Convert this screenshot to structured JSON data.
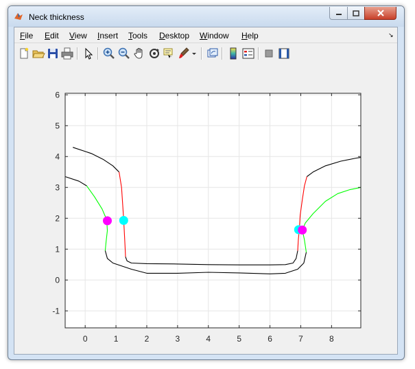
{
  "window": {
    "title": "Neck thickness",
    "app_icon": "matlab-icon"
  },
  "menu": {
    "items": [
      {
        "label": "File",
        "mnemonic": "F",
        "rest": "ile"
      },
      {
        "label": "Edit",
        "mnemonic": "E",
        "rest": "dit"
      },
      {
        "label": "View",
        "mnemonic": "V",
        "rest": "iew"
      },
      {
        "label": "Insert",
        "mnemonic": "I",
        "rest": "nsert"
      },
      {
        "label": "Tools",
        "mnemonic": "T",
        "rest": "ools"
      },
      {
        "label": "Desktop",
        "mnemonic": "D",
        "rest": "esktop"
      },
      {
        "label": "Window",
        "mnemonic": "W",
        "rest": "indow"
      },
      {
        "label": "Help",
        "mnemonic": "H",
        "rest": "elp"
      }
    ]
  },
  "toolbar": {
    "buttons": [
      "new-figure-icon",
      "open-file-icon",
      "save-icon",
      "print-icon",
      "select-pointer-icon",
      "zoom-in-icon",
      "zoom-out-icon",
      "pan-hand-icon",
      "rotate-3d-icon",
      "data-cursor-icon",
      "brush-icon",
      "brush-dropdown-icon",
      "link-plot-icon",
      "colorbar-icon",
      "legend-icon",
      "hide-plot-tools-icon",
      "show-plot-tools-icon"
    ]
  },
  "chart_data": {
    "type": "line",
    "title": "",
    "xlabel": "",
    "ylabel": "",
    "xlim": [
      -0.65,
      8.95
    ],
    "ylim": [
      -1.55,
      6.05
    ],
    "xticks": [
      0,
      1,
      2,
      3,
      4,
      5,
      6,
      7,
      8
    ],
    "yticks": [
      -1,
      0,
      1,
      2,
      3,
      4,
      5,
      6
    ],
    "grid": true,
    "series": [
      {
        "color": "#000000",
        "points": [
          [
            -0.4,
            4.3
          ],
          [
            0.2,
            4.1
          ],
          [
            0.6,
            3.9
          ],
          [
            0.9,
            3.7
          ],
          [
            1.1,
            3.5
          ]
        ]
      },
      {
        "color": "#ff0000",
        "points": [
          [
            1.1,
            3.5
          ],
          [
            1.18,
            3.0
          ],
          [
            1.22,
            2.4
          ],
          [
            1.25,
            1.95
          ],
          [
            1.28,
            1.4
          ],
          [
            1.3,
            1.0
          ],
          [
            1.31,
            0.75
          ]
        ]
      },
      {
        "color": "#000000",
        "points": [
          [
            1.31,
            0.75
          ],
          [
            1.36,
            0.62
          ],
          [
            1.5,
            0.55
          ],
          [
            2.0,
            0.53
          ],
          [
            3.0,
            0.52
          ],
          [
            4.0,
            0.5
          ],
          [
            5.0,
            0.49
          ],
          [
            6.0,
            0.49
          ],
          [
            6.5,
            0.5
          ],
          [
            6.75,
            0.55
          ],
          [
            6.85,
            0.7
          ],
          [
            6.9,
            0.95
          ]
        ]
      },
      {
        "color": "#ff0000",
        "points": [
          [
            6.9,
            0.95
          ],
          [
            6.92,
            1.3
          ],
          [
            6.95,
            1.6
          ],
          [
            6.98,
            2.1
          ],
          [
            7.05,
            2.6
          ],
          [
            7.12,
            3.05
          ],
          [
            7.2,
            3.35
          ]
        ]
      },
      {
        "color": "#000000",
        "points": [
          [
            7.2,
            3.35
          ],
          [
            7.4,
            3.5
          ],
          [
            7.8,
            3.7
          ],
          [
            8.3,
            3.85
          ],
          [
            8.8,
            3.95
          ],
          [
            8.95,
            3.97
          ]
        ]
      },
      {
        "color": "#000000",
        "points": [
          [
            -0.65,
            3.35
          ],
          [
            -0.2,
            3.2
          ],
          [
            0.05,
            3.05
          ]
        ]
      },
      {
        "color": "#00ff00",
        "points": [
          [
            0.05,
            3.05
          ],
          [
            0.3,
            2.7
          ],
          [
            0.55,
            2.3
          ],
          [
            0.7,
            1.95
          ],
          [
            0.72,
            1.6
          ],
          [
            0.68,
            1.25
          ],
          [
            0.65,
            0.95
          ]
        ]
      },
      {
        "color": "#000000",
        "points": [
          [
            0.65,
            0.95
          ],
          [
            0.72,
            0.7
          ],
          [
            0.9,
            0.55
          ],
          [
            1.5,
            0.35
          ],
          [
            2.0,
            0.22
          ],
          [
            3.0,
            0.22
          ],
          [
            4.0,
            0.25
          ],
          [
            5.0,
            0.23
          ],
          [
            6.0,
            0.2
          ],
          [
            6.5,
            0.22
          ],
          [
            6.9,
            0.35
          ],
          [
            7.1,
            0.55
          ],
          [
            7.18,
            0.9
          ]
        ]
      },
      {
        "color": "#00ff00",
        "points": [
          [
            7.18,
            0.9
          ],
          [
            7.12,
            1.3
          ],
          [
            7.05,
            1.62
          ],
          [
            7.15,
            1.85
          ],
          [
            7.4,
            2.15
          ],
          [
            7.8,
            2.55
          ],
          [
            8.2,
            2.8
          ],
          [
            8.6,
            2.93
          ],
          [
            8.95,
            3.0
          ]
        ]
      }
    ],
    "markers": [
      {
        "x": 0.72,
        "y": 1.92,
        "color": "#ff00ff"
      },
      {
        "x": 1.25,
        "y": 1.93,
        "color": "#00ffff"
      },
      {
        "x": 6.93,
        "y": 1.63,
        "color": "#00ffff"
      },
      {
        "x": 7.05,
        "y": 1.62,
        "color": "#ff00ff"
      }
    ]
  }
}
